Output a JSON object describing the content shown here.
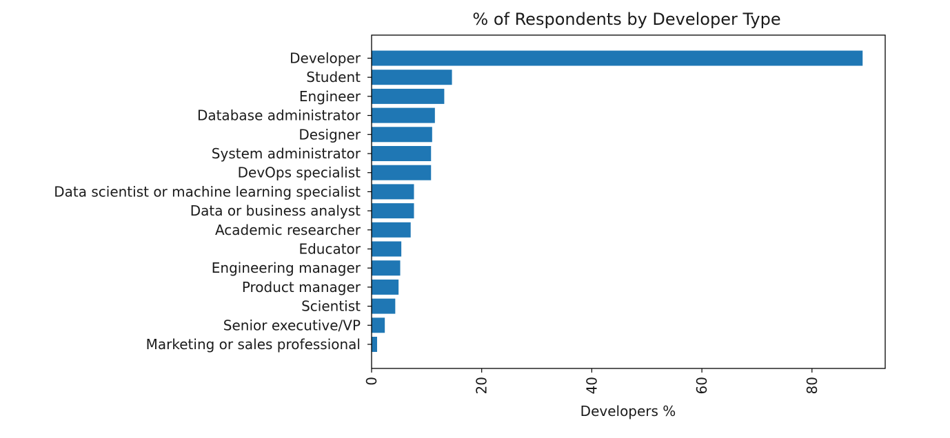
{
  "chart_data": {
    "type": "bar",
    "orientation": "horizontal",
    "title": "% of Respondents by Developer Type",
    "xlabel": "Developers %",
    "ylabel": "",
    "categories": [
      "Developer",
      "Student",
      "Engineer",
      "Database administrator",
      "Designer",
      "System administrator",
      "DevOps specialist",
      "Data scientist or machine learning specialist",
      "Data or business analyst",
      "Academic researcher",
      "Educator",
      "Engineering manager",
      "Product manager",
      "Scientist",
      "Senior executive/VP",
      "Marketing or sales professional"
    ],
    "values": [
      89.2,
      14.6,
      13.2,
      11.5,
      11.0,
      10.8,
      10.8,
      7.7,
      7.7,
      7.1,
      5.4,
      5.2,
      4.9,
      4.3,
      2.4,
      1.0
    ],
    "xlim": [
      0,
      93.3
    ],
    "xticks": [
      "0",
      "20",
      "40",
      "60",
      "80"
    ],
    "tick_values": [
      0,
      20,
      40,
      60,
      80
    ],
    "grid": false,
    "bar_color": "#1f77b4"
  }
}
